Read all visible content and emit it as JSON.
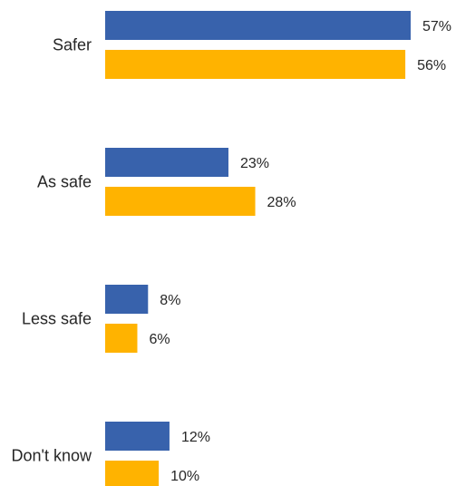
{
  "chart_data": {
    "type": "bar",
    "orientation": "horizontal",
    "categories": [
      "Safer",
      "As safe",
      "Less safe",
      "Don't know"
    ],
    "series": [
      {
        "values": [
          57,
          23,
          8,
          12
        ],
        "color": "#3862ac"
      },
      {
        "values": [
          56,
          28,
          6,
          10
        ],
        "color": "#ffb300"
      }
    ],
    "value_suffix": "%",
    "xlim": [
      0,
      57
    ],
    "grid": false,
    "legend": "none"
  }
}
